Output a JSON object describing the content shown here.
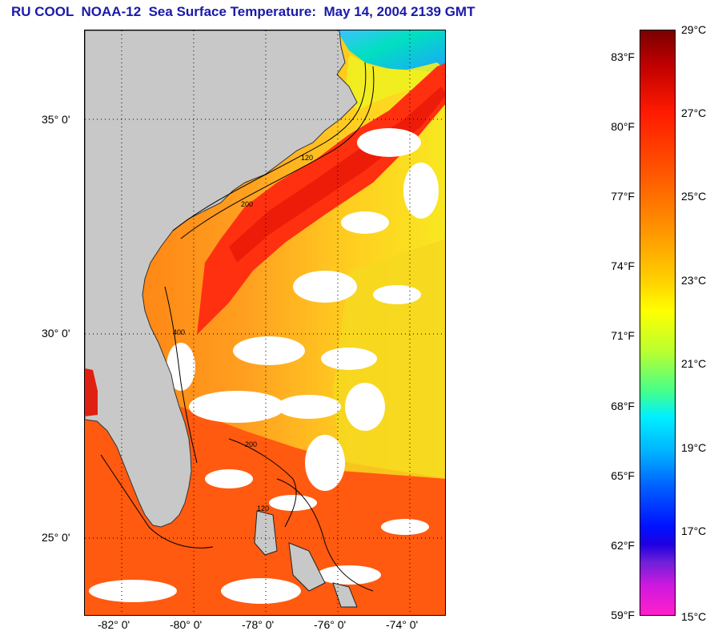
{
  "title": "RU COOL  NOAA-12  Sea Surface Temperature:  May 14, 2004 2139 GMT",
  "map": {
    "lat_labels": [
      "35° 0'",
      "30° 0'",
      "25° 0'"
    ],
    "lon_labels": [
      "-82° 0'",
      "-80° 0'",
      "-78° 0'",
      "-76° 0'",
      "-74° 0'"
    ],
    "land_color": "#c8c8c8",
    "contour_labels": [
      "120",
      "200",
      "400",
      "200",
      "120"
    ]
  },
  "colorbar": {
    "fahrenheit": [
      "83°F",
      "80°F",
      "77°F",
      "74°F",
      "71°F",
      "68°F",
      "65°F",
      "62°F",
      "59°F"
    ],
    "celsius": [
      "29°C",
      "27°C",
      "25°C",
      "23°C",
      "21°C",
      "19°C",
      "17°C",
      "15°C"
    ]
  }
}
